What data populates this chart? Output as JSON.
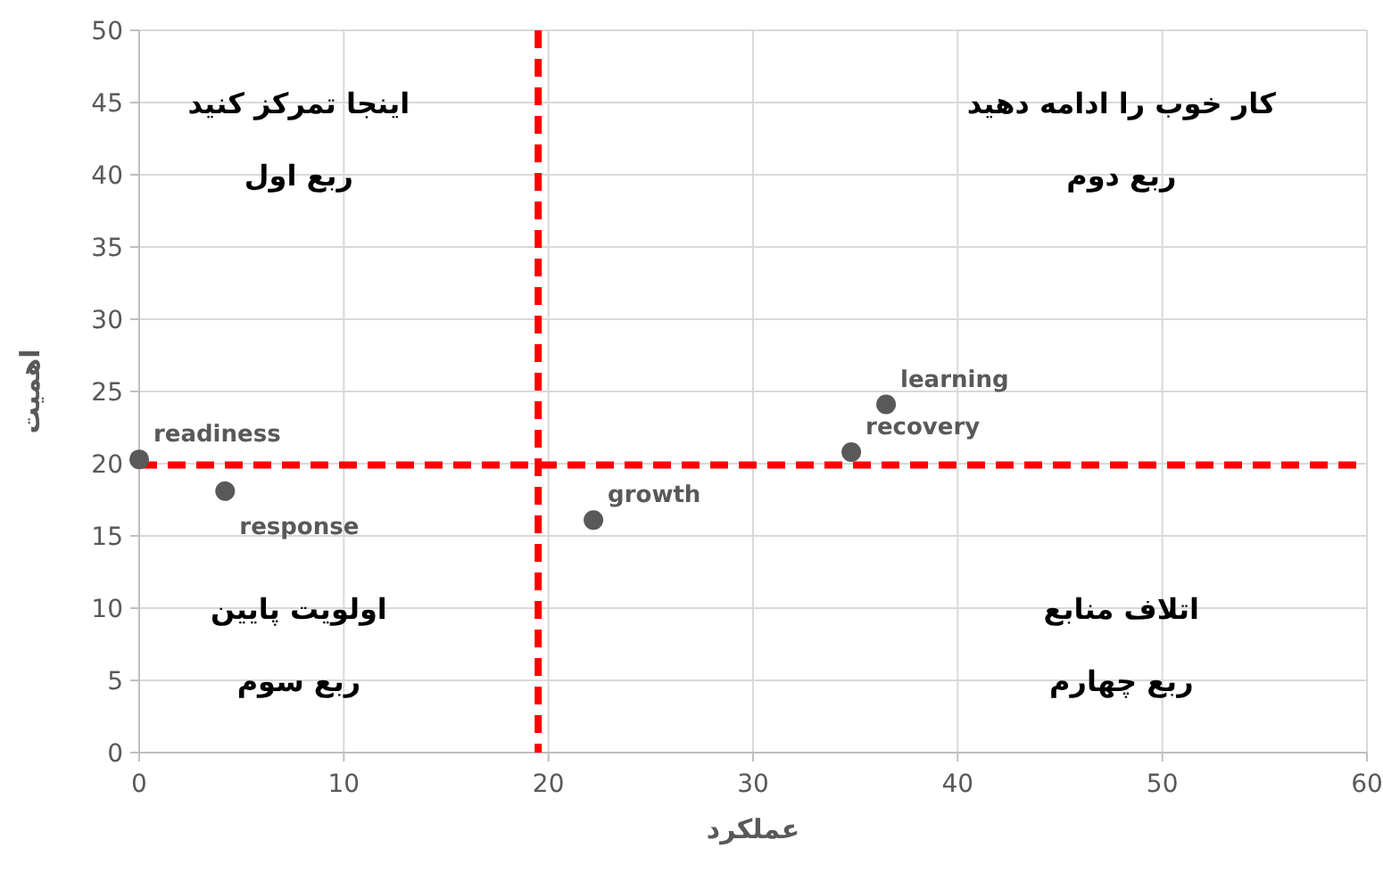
{
  "chart_data": {
    "type": "scatter",
    "xlabel": "عملکرد",
    "ylabel": "اهمیت",
    "x": [
      0,
      4.2,
      22.2,
      34.8,
      36.5
    ],
    "values": [
      20.3,
      18.1,
      16.1,
      20.8,
      24.1
    ],
    "color": "#595959",
    "marker": "circle",
    "grid": true,
    "xlim": [
      0,
      60
    ],
    "xticks": [
      0,
      10,
      20,
      30,
      40,
      50,
      60
    ],
    "ylim": [
      0,
      50
    ],
    "yticks": [
      0,
      5,
      10,
      15,
      20,
      25,
      30,
      35,
      40,
      45,
      50
    ],
    "ref_lines": [
      {
        "axis": "x",
        "value": 19.5,
        "color": "#ff0000",
        "line_style": "dashed"
      },
      {
        "axis": "y",
        "value": 19.9,
        "color": "#ff0000",
        "line_style": "dashed"
      }
    ],
    "annotations": [
      {
        "text": "readiness",
        "x": 0,
        "y": 20.3
      },
      {
        "text": "response",
        "x": 4.2,
        "y": 18.1
      },
      {
        "text": "growth",
        "x": 22.2,
        "y": 16.1
      },
      {
        "text": "recovery",
        "x": 34.8,
        "y": 20.8
      },
      {
        "text": "learning",
        "x": 36.5,
        "y": 24.1
      },
      "اینجا تمرکز کنید",
      "ربع اول",
      "کار خوب را ادامه دهید",
      "ربع دوم",
      "اولویت پایین",
      "ربع سوم",
      "اتلاف منابع",
      "ربع چهارم"
    ]
  }
}
